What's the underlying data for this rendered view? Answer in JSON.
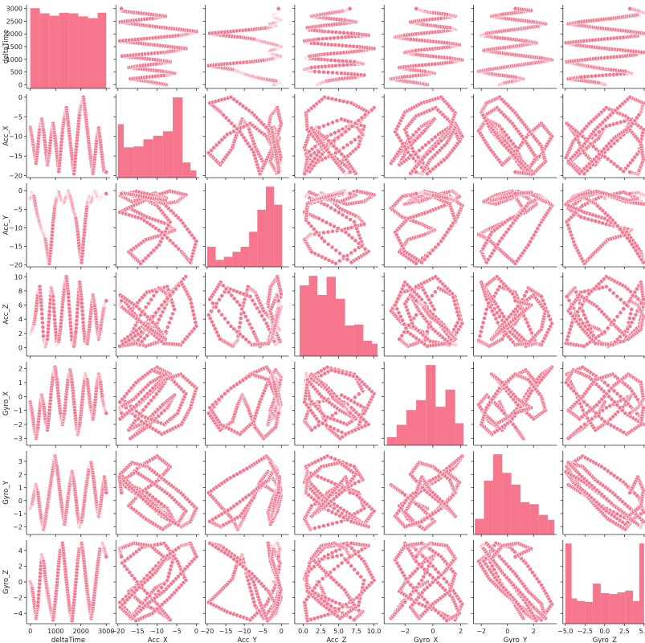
{
  "chart_data": {
    "type": "scatter",
    "title": "",
    "style": {
      "point_color": "#f6768e",
      "point_edge_color": "#ffffff",
      "bar_color": "#f6768e",
      "background": "#ffffff",
      "grid": false
    },
    "variables": [
      {
        "name": "deltaTime",
        "label": "deltaTime",
        "range": [
          -150,
          3150
        ],
        "x_ticks": [
          "0",
          "1000",
          "2000",
          "3000"
        ],
        "y_ticks": [
          "0",
          "500",
          "1000",
          "1500",
          "2000",
          "2500",
          "3000"
        ]
      },
      {
        "name": "Acc_X",
        "label": "Acc_X",
        "range": [
          -20.5,
          0.8
        ],
        "x_ticks": [
          "−20",
          "−15",
          "−10",
          "−5",
          "0"
        ],
        "y_ticks": [
          "−20",
          "−15",
          "−10",
          "−5",
          "0"
        ]
      },
      {
        "name": "Acc_Y",
        "label": "Acc_Y",
        "range": [
          -20.5,
          2.0
        ],
        "x_ticks": [
          "−20",
          "−15",
          "−10",
          "−5",
          "0"
        ],
        "y_ticks": [
          "−20",
          "−15",
          "−10",
          "−5",
          "0"
        ]
      },
      {
        "name": "Acc_Z",
        "label": "Acc_Z",
        "range": [
          -1.2,
          10.6
        ],
        "x_ticks": [
          "0.0",
          "2.5",
          "5.0",
          "7.5",
          "10.0"
        ],
        "y_ticks": [
          "0",
          "2",
          "4",
          "6",
          "8",
          "10"
        ]
      },
      {
        "name": "Gyro_X",
        "label": "Gyro_X",
        "range": [
          -3.5,
          2.5
        ],
        "x_ticks": [
          "−2",
          "0",
          "2"
        ],
        "y_ticks": [
          "−3",
          "−2",
          "−1",
          "0",
          "1",
          "2"
        ]
      },
      {
        "name": "Gyro_Y",
        "label": "Gyro_Y",
        "range": [
          -2.6,
          3.8
        ],
        "x_ticks": [
          "−2",
          "0",
          "2"
        ],
        "y_ticks": [
          "−2",
          "−1",
          "0",
          "1",
          "2",
          "3"
        ]
      },
      {
        "name": "Gyro_Z",
        "label": "Gyro_Z",
        "range": [
          -5.3,
          5.3
        ],
        "x_ticks": [
          "−5.0",
          "−2.5",
          "0.0",
          "2.5",
          "5.0"
        ],
        "y_ticks": [
          "−4",
          "−2",
          "0",
          "2",
          "4"
        ]
      }
    ],
    "histograms": [
      {
        "variable": "deltaTime",
        "bins": [
          0,
          380,
          760,
          1140,
          1520,
          1900,
          2280,
          2660,
          3000
        ],
        "counts": [
          265,
          248,
          240,
          250,
          248,
          238,
          232,
          250
        ]
      },
      {
        "variable": "Acc_X",
        "bins": [
          -20,
          -18.5,
          -16,
          -13.5,
          -11,
          -8.5,
          -6,
          -3.5,
          -1.5,
          0
        ],
        "counts": [
          60,
          34,
          35,
          43,
          47,
          52,
          90,
          17,
          8
        ]
      },
      {
        "variable": "Acc_Y",
        "bins": [
          -20,
          -17.7,
          -15.5,
          -13.2,
          -11,
          -8.7,
          -6.5,
          -4.2,
          -2,
          0.2
        ],
        "counts": [
          20,
          7,
          10,
          15,
          20,
          35,
          57,
          80,
          62
        ]
      },
      {
        "variable": "Acc_Z",
        "bins": [
          -0.5,
          0.8,
          2.0,
          3.3,
          4.6,
          5.9,
          7.2,
          8.5,
          9.7,
          10.5
        ],
        "counts": [
          74,
          84,
          64,
          83,
          60,
          32,
          33,
          16,
          13
        ]
      },
      {
        "variable": "Gyro_X",
        "bins": [
          -3.3,
          -2.6,
          -1.9,
          -1.2,
          -0.5,
          0.2,
          0.9,
          1.6,
          2.2
        ],
        "counts": [
          10,
          25,
          43,
          55,
          98,
          47,
          68,
          27
        ]
      },
      {
        "variable": "Gyro_Y",
        "bins": [
          -2.5,
          -1.8,
          -1.1,
          -0.4,
          0.3,
          1.0,
          1.7,
          2.4,
          3.1,
          3.6
        ],
        "counts": [
          16,
          55,
          82,
          63,
          51,
          33,
          31,
          20,
          15
        ]
      },
      {
        "variable": "Gyro_Z",
        "bins": [
          -5.0,
          -4.2,
          -3.5,
          -2.5,
          -1.5,
          -0.5,
          0.6,
          1.6,
          2.6,
          3.6,
          4.4,
          5.0
        ],
        "counts": [
          92,
          29,
          26,
          25,
          46,
          35,
          34,
          36,
          38,
          26,
          92
        ]
      }
    ],
    "series": [
      {
        "variable": "deltaTime",
        "values": [
          0,
          75,
          150,
          225,
          300,
          375,
          450,
          525,
          600,
          675,
          750,
          825,
          900,
          975,
          1050,
          1125,
          1200,
          1275,
          1350,
          1425,
          1500,
          1575,
          1650,
          1725,
          1800,
          1875,
          1950,
          2025,
          2100,
          2175,
          2250,
          2325,
          2400,
          2475,
          2550,
          2625,
          2700,
          2775,
          2850,
          2925,
          3000
        ]
      },
      {
        "variable": "Acc_X",
        "values": [
          -7.7,
          -10.5,
          -13.5,
          -16.8,
          -12.6,
          -7.4,
          -5.6,
          -8.6,
          -12.9,
          -17.2,
          -14.2,
          -9.5,
          -6.7,
          -10.0,
          -14.5,
          -18.9,
          -13.8,
          -8.2,
          -4.8,
          -2.7,
          -6.8,
          -11.3,
          -15.4,
          -19.5,
          -14.0,
          -8.8,
          -3.8,
          -1.5,
          0.0,
          -4.0,
          -8.3,
          -12.5,
          -16.4,
          -19.4,
          -15.2,
          -10.4,
          -7.9,
          -11.7,
          -16.0,
          -19.6,
          -19.1
        ]
      },
      {
        "variable": "Acc_Y",
        "values": [
          -2.0,
          -0.6,
          -1.6,
          -4.8,
          -7.1,
          -9.0,
          -10.6,
          -11.8,
          -13.2,
          -16.5,
          -19.6,
          -14.6,
          -8.4,
          -4.0,
          -1.5,
          -0.4,
          -2.2,
          -3.6,
          -2.9,
          -1.1,
          -0.1,
          -1.6,
          -3.7,
          -5.8,
          -7.5,
          -11.2,
          -16.4,
          -19.3,
          -13.6,
          -7.9,
          -3.5,
          -1.6,
          -3.0,
          -1.2,
          -0.2,
          -1.4,
          -2.6,
          -2.0,
          -1.1,
          -0.5,
          -0.8
        ]
      },
      {
        "variable": "Acc_Z",
        "values": [
          2.0,
          2.6,
          3.4,
          5.2,
          7.8,
          8.6,
          5.4,
          1.0,
          0.2,
          1.2,
          4.6,
          8.4,
          7.2,
          3.4,
          0.4,
          0.9,
          3.0,
          6.2,
          8.6,
          10.0,
          7.6,
          4.0,
          0.6,
          0.2,
          2.2,
          6.0,
          9.2,
          6.8,
          3.0,
          0.4,
          0.6,
          2.6,
          5.2,
          7.4,
          5.8,
          3.2,
          1.2,
          2.6,
          4.4,
          6.0,
          6.6
        ]
      },
      {
        "variable": "Gyro_X",
        "values": [
          -0.4,
          -1.2,
          -2.2,
          -3.0,
          -2.2,
          -0.8,
          0.1,
          -0.6,
          -1.8,
          -2.4,
          -1.2,
          0.4,
          1.6,
          2.1,
          1.2,
          -0.2,
          -1.4,
          -2.0,
          -1.2,
          0.2,
          1.4,
          1.9,
          1.0,
          -0.4,
          -1.8,
          -2.7,
          -2.0,
          -0.8,
          0.6,
          1.6,
          1.2,
          0.0,
          -1.0,
          -1.6,
          -0.6,
          0.8,
          1.6,
          1.0,
          -0.2,
          -0.8,
          -1.2
        ]
      },
      {
        "variable": "Gyro_Y",
        "values": [
          -0.6,
          -0.2,
          0.6,
          1.2,
          0.6,
          -0.6,
          -1.6,
          -2.2,
          -1.4,
          -0.4,
          0.6,
          1.6,
          2.6,
          3.4,
          2.6,
          1.4,
          0.2,
          -0.9,
          -1.8,
          -0.8,
          0.4,
          1.4,
          2.2,
          1.4,
          0.2,
          -1.2,
          -2.0,
          -1.6,
          -0.6,
          0.6,
          1.6,
          2.6,
          2.9,
          2.0,
          0.8,
          -0.4,
          -1.2,
          -0.4,
          0.8,
          1.8,
          0.6
        ]
      },
      {
        "variable": "Gyro_Z",
        "values": [
          0.0,
          -0.8,
          -2.6,
          -4.6,
          -3.0,
          0.2,
          3.4,
          2.6,
          0.4,
          -1.2,
          -2.6,
          -3.8,
          -4.8,
          -2.8,
          -0.4,
          2.4,
          4.4,
          4.9,
          2.6,
          0.2,
          -2.0,
          -4.0,
          -4.9,
          -2.6,
          0.0,
          2.8,
          4.6,
          4.9,
          3.2,
          1.0,
          -1.2,
          -2.8,
          -4.6,
          -3.2,
          -1.0,
          1.2,
          3.0,
          4.6,
          4.9,
          4.2,
          3.2
        ]
      }
    ]
  }
}
